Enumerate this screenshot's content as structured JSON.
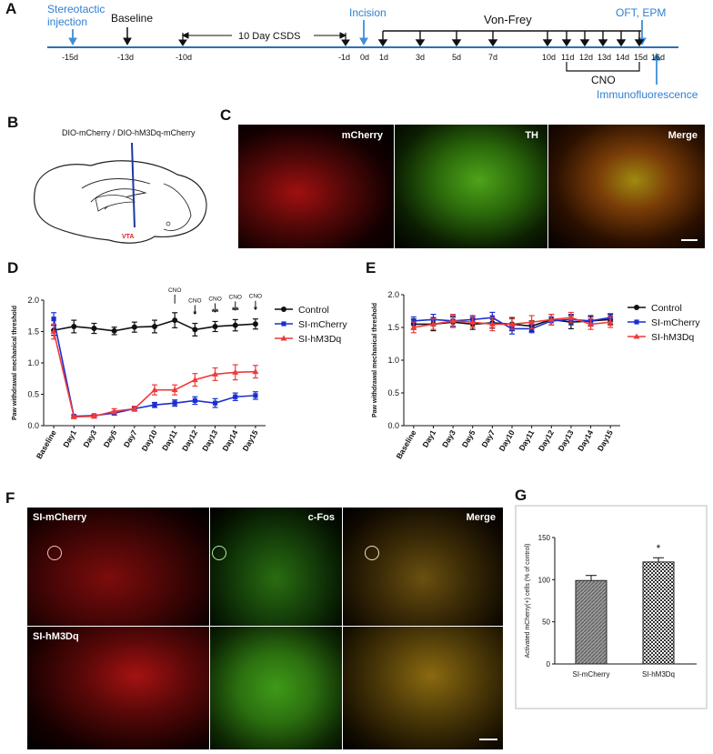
{
  "panels": {
    "a": "A",
    "b": "B",
    "c": "C",
    "d": "D",
    "e": "E",
    "f": "F",
    "g": "G"
  },
  "timeline": {
    "top_labels": {
      "stereotactic": "Stereotactic\ninjection",
      "baseline": "Baseline",
      "csds": "10 Day CSDS",
      "incision": "Incision",
      "vonfrey": "Von-Frey",
      "oft": "OFT, EPM",
      "cno": "CNO",
      "immuno": "Immunofluorescence"
    },
    "days": [
      "-15d",
      "-13d",
      "-10d",
      "-1d",
      "0d",
      "1d",
      "3d",
      "5d",
      "7d",
      "10d",
      "11d",
      "12d",
      "13d",
      "14d",
      "15d",
      "16d"
    ]
  },
  "panel_b": {
    "title": "DIO-mCherry / DIO-hM3Dq-mCherry",
    "region": "VTA"
  },
  "panel_c": {
    "labels": [
      "mCherry",
      "TH",
      "Merge"
    ]
  },
  "panel_f": {
    "row1_label": "SI-mCherry",
    "row2_label": "SI-hM3Dq",
    "col2_label": "c-Fos",
    "col3_label": "Merge"
  },
  "chart_data": [
    {
      "type": "line",
      "panel": "D",
      "ylabel": "Paw withdrawal mechanical threshold",
      "ylim": [
        0,
        2.0
      ],
      "yticks": [
        "0.0",
        "0.5",
        "1.0",
        "1.5",
        "2.0"
      ],
      "categories": [
        "Baseline",
        "Day1",
        "Day3",
        "Day5",
        "Day7",
        "Day10",
        "Day11",
        "Day12",
        "Day13",
        "Day14",
        "Day15"
      ],
      "legend_position": "right",
      "series": [
        {
          "name": "Control",
          "color": "#111111",
          "values": [
            1.52,
            1.58,
            1.55,
            1.51,
            1.57,
            1.58,
            1.68,
            1.53,
            1.58,
            1.6,
            1.62
          ],
          "err": [
            0.08,
            0.1,
            0.08,
            0.06,
            0.08,
            0.1,
            0.12,
            0.1,
            0.08,
            0.09,
            0.08
          ]
        },
        {
          "name": "SI-mCherry",
          "color": "#1a2fd1",
          "values": [
            1.7,
            0.15,
            0.16,
            0.2,
            0.27,
            0.33,
            0.36,
            0.4,
            0.36,
            0.46,
            0.48
          ],
          "err": [
            0.1,
            0.02,
            0.02,
            0.03,
            0.03,
            0.04,
            0.05,
            0.06,
            0.07,
            0.06,
            0.06
          ]
        },
        {
          "name": "SI-hM3Dq",
          "color": "#ef3a3a",
          "values": [
            1.5,
            0.14,
            0.15,
            0.23,
            0.27,
            0.57,
            0.57,
            0.73,
            0.82,
            0.85,
            0.86
          ],
          "err": [
            0.12,
            0.02,
            0.03,
            0.04,
            0.04,
            0.08,
            0.08,
            0.1,
            0.1,
            0.12,
            0.1
          ]
        }
      ],
      "annotations": [
        {
          "category": "Day11",
          "cno": "CNO",
          "stars": ""
        },
        {
          "category": "Day12",
          "cno": "CNO",
          "stars": "*"
        },
        {
          "category": "Day13",
          "cno": "CNO",
          "stars": "**"
        },
        {
          "category": "Day14",
          "cno": "CNO",
          "stars": "**"
        },
        {
          "category": "Day15",
          "cno": "CNO",
          "stars": "*"
        }
      ]
    },
    {
      "type": "line",
      "panel": "E",
      "ylabel": "Paw withdrawal mechanical threshold",
      "ylim": [
        0,
        2.0
      ],
      "yticks": [
        "0.0",
        "0.5",
        "1.0",
        "1.5",
        "2.0"
      ],
      "categories": [
        "Baseline",
        "Day1",
        "Day3",
        "Day5",
        "Day7",
        "Day10",
        "Day11",
        "Day12",
        "Day13",
        "Day14",
        "Day15"
      ],
      "legend_position": "right",
      "series": [
        {
          "name": "Control",
          "color": "#111111",
          "values": [
            1.55,
            1.55,
            1.58,
            1.55,
            1.57,
            1.55,
            1.52,
            1.62,
            1.58,
            1.6,
            1.62
          ],
          "err": [
            0.08,
            0.1,
            0.08,
            0.08,
            0.08,
            0.1,
            0.08,
            0.08,
            0.1,
            0.08,
            0.08
          ]
        },
        {
          "name": "SI-mCherry",
          "color": "#1a2fd1",
          "values": [
            1.6,
            1.62,
            1.6,
            1.62,
            1.65,
            1.48,
            1.48,
            1.6,
            1.62,
            1.6,
            1.65
          ],
          "err": [
            0.06,
            0.08,
            0.08,
            0.06,
            0.08,
            0.08,
            0.06,
            0.06,
            0.08,
            0.06,
            0.06
          ]
        },
        {
          "name": "SI-hM3Dq",
          "color": "#ef3a3a",
          "values": [
            1.5,
            1.55,
            1.6,
            1.58,
            1.55,
            1.55,
            1.58,
            1.62,
            1.65,
            1.55,
            1.58
          ],
          "err": [
            0.08,
            0.08,
            0.1,
            0.08,
            0.1,
            0.08,
            0.1,
            0.08,
            0.08,
            0.08,
            0.08
          ]
        }
      ]
    },
    {
      "type": "bar",
      "panel": "G",
      "ylabel": "Activated mCherry(+) cells (% of control)",
      "ylim": [
        0,
        150
      ],
      "yticks": [
        "0",
        "50",
        "100",
        "150"
      ],
      "categories": [
        "SI-mCherry",
        "SI-hM3Dq"
      ],
      "values": [
        99,
        121
      ],
      "err": [
        6,
        5
      ],
      "annotations": [
        {
          "category": "SI-hM3Dq",
          "text": "*"
        }
      ]
    }
  ]
}
